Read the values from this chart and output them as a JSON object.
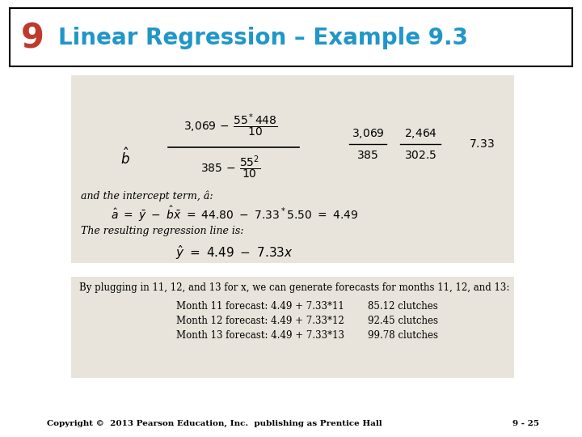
{
  "title_number": "9",
  "title_number_color": "#c0392b",
  "title_text": "Linear Regression – Example 9.3",
  "title_text_color": "#2196c8",
  "bg_color": "#ffffff",
  "header_box_color": "#000000",
  "box1_color": "#e8e4db",
  "box2_color": "#e8e4db",
  "footer_text": "Copyright ©  2013 Pearson Education, Inc.  publishing as Prentice Hall",
  "footer_right": "9 - 25",
  "forecasts": [
    {
      "label": "Month 11 forecast: 4.49 + 7.33*11",
      "value": "85.12 clutches"
    },
    {
      "label": "Month 12 forecast: 4.49 + 7.33*12",
      "value": "92.45 clutches"
    },
    {
      "label": "Month 13 forecast: 4.49 + 7.33*13",
      "value": "99.78 clutches"
    }
  ]
}
